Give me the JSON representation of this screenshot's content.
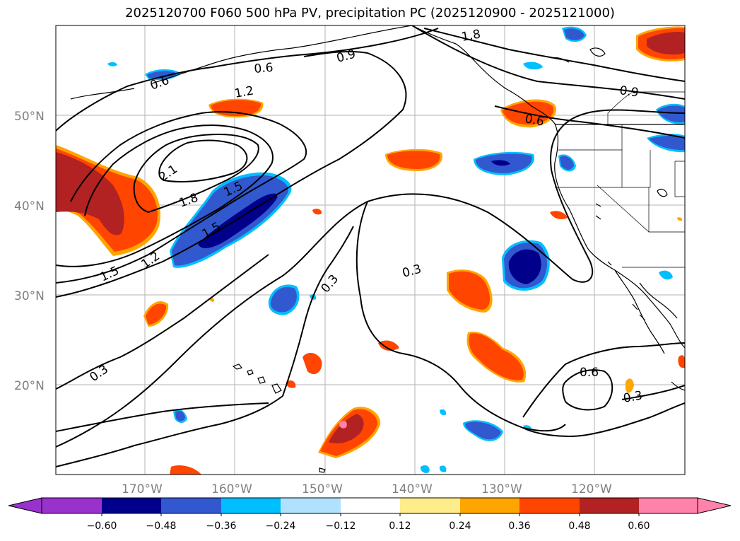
{
  "title": "2025120700 F060 500 hPa PV, precipitation PC (2025120900 - 2025121000)",
  "map": {
    "lat_labels": [
      "50°N",
      "40°N",
      "30°N",
      "20°N"
    ],
    "lon_labels": [
      "170°W",
      "160°W",
      "150°W",
      "140°W",
      "130°W",
      "120°W"
    ],
    "contour_labels": [
      "0.3",
      "0.6",
      "0.9",
      "1.2",
      "1.5",
      "1.8",
      "2.1",
      "1.8",
      "1.5",
      "1.2",
      "0.9",
      "1.5",
      "0.9",
      "0.6",
      "0.3",
      "0.3",
      "0.3",
      "0.3",
      "0.6",
      "0.3"
    ],
    "colors": {
      "neg_strong": "#00008b",
      "neg_mid": "#3158cf",
      "neg_light": "#00bfff",
      "pos_light": "#ffa500",
      "pos_mid": "#ff4500",
      "pos_strong": "#b22222",
      "pos_max": "#ff82ab"
    }
  },
  "colorbar": {
    "ticks": [
      "−0.60",
      "−0.48",
      "−0.36",
      "−0.24",
      "−0.12",
      "0.12",
      "0.24",
      "0.36",
      "0.48",
      "0.60"
    ],
    "colors": [
      "#9932cc",
      "#00008b",
      "#3158cf",
      "#00bfff",
      "#b0e2ff",
      "#ffffff",
      "#ffec8b",
      "#ffa500",
      "#ff4500",
      "#b22222",
      "#ff82ab"
    ]
  }
}
